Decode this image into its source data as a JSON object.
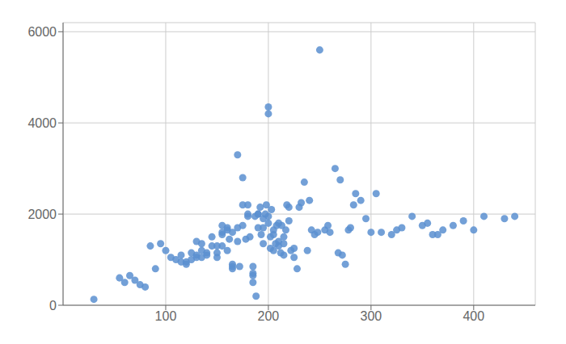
{
  "chart_data": {
    "type": "scatter",
    "x": [
      30,
      55,
      60,
      65,
      70,
      75,
      80,
      85,
      90,
      95,
      100,
      105,
      110,
      115,
      115,
      120,
      120,
      125,
      125,
      130,
      130,
      130,
      135,
      135,
      135,
      140,
      140,
      145,
      145,
      150,
      150,
      150,
      155,
      155,
      155,
      155,
      160,
      160,
      160,
      162,
      165,
      165,
      165,
      165,
      170,
      170,
      170,
      172,
      175,
      175,
      175,
      178,
      180,
      180,
      180,
      182,
      185,
      185,
      185,
      185,
      187,
      188,
      190,
      190,
      190,
      192,
      193,
      195,
      195,
      195,
      197,
      198,
      200,
      200,
      200,
      200,
      202,
      202,
      203,
      205,
      205,
      205,
      207,
      208,
      210,
      210,
      210,
      212,
      213,
      215,
      215,
      215,
      217,
      218,
      220,
      220,
      222,
      225,
      225,
      228,
      230,
      232,
      235,
      238,
      240,
      242,
      245,
      248,
      250,
      255,
      258,
      260,
      265,
      268,
      270,
      272,
      275,
      278,
      280,
      283,
      285,
      290,
      295,
      300,
      305,
      310,
      320,
      325,
      330,
      340,
      350,
      355,
      360,
      365,
      370,
      380,
      390,
      400,
      410,
      430,
      440
    ],
    "y": [
      130,
      600,
      500,
      650,
      550,
      450,
      400,
      1300,
      800,
      1350,
      1200,
      1050,
      1000,
      950,
      1100,
      950,
      900,
      1150,
      1000,
      1100,
      1050,
      1400,
      1350,
      1050,
      1200,
      1150,
      1100,
      1300,
      1500,
      1300,
      1150,
      1050,
      1300,
      1550,
      1600,
      1750,
      1700,
      1650,
      1200,
      1450,
      1600,
      900,
      800,
      850,
      1400,
      1700,
      3300,
      850,
      2800,
      1750,
      2200,
      1450,
      2200,
      1950,
      2000,
      1500,
      850,
      700,
      650,
      500,
      1950,
      200,
      2000,
      1700,
      2000,
      2150,
      1550,
      1900,
      1350,
      1700,
      2000,
      2200,
      4200,
      4350,
      1800,
      1950,
      1250,
      1500,
      2100,
      1200,
      1550,
      1650,
      1350,
      1750,
      1400,
      1800,
      1300,
      1150,
      1750,
      1500,
      1350,
      1100,
      1650,
      2200,
      2150,
      1850,
      1200,
      1250,
      1050,
      800,
      2150,
      2250,
      2700,
      1200,
      2300,
      1650,
      1550,
      1600,
      5600,
      1650,
      1750,
      1600,
      3000,
      1150,
      2750,
      1100,
      900,
      1650,
      1700,
      2200,
      2450,
      2300,
      1900,
      1600,
      2450,
      1600,
      1550,
      1650,
      1700,
      1950,
      1750,
      1800,
      1550,
      1550,
      1650,
      1750,
      1850,
      1650,
      1950,
      1900,
      1950
    ],
    "color": "#5a8fd0",
    "xlim": [
      0,
      460
    ],
    "ylim": [
      0,
      6200
    ],
    "xticks": [
      100,
      200,
      300,
      400
    ],
    "yticks": [
      0,
      2000,
      4000,
      6000
    ],
    "grid": true
  }
}
